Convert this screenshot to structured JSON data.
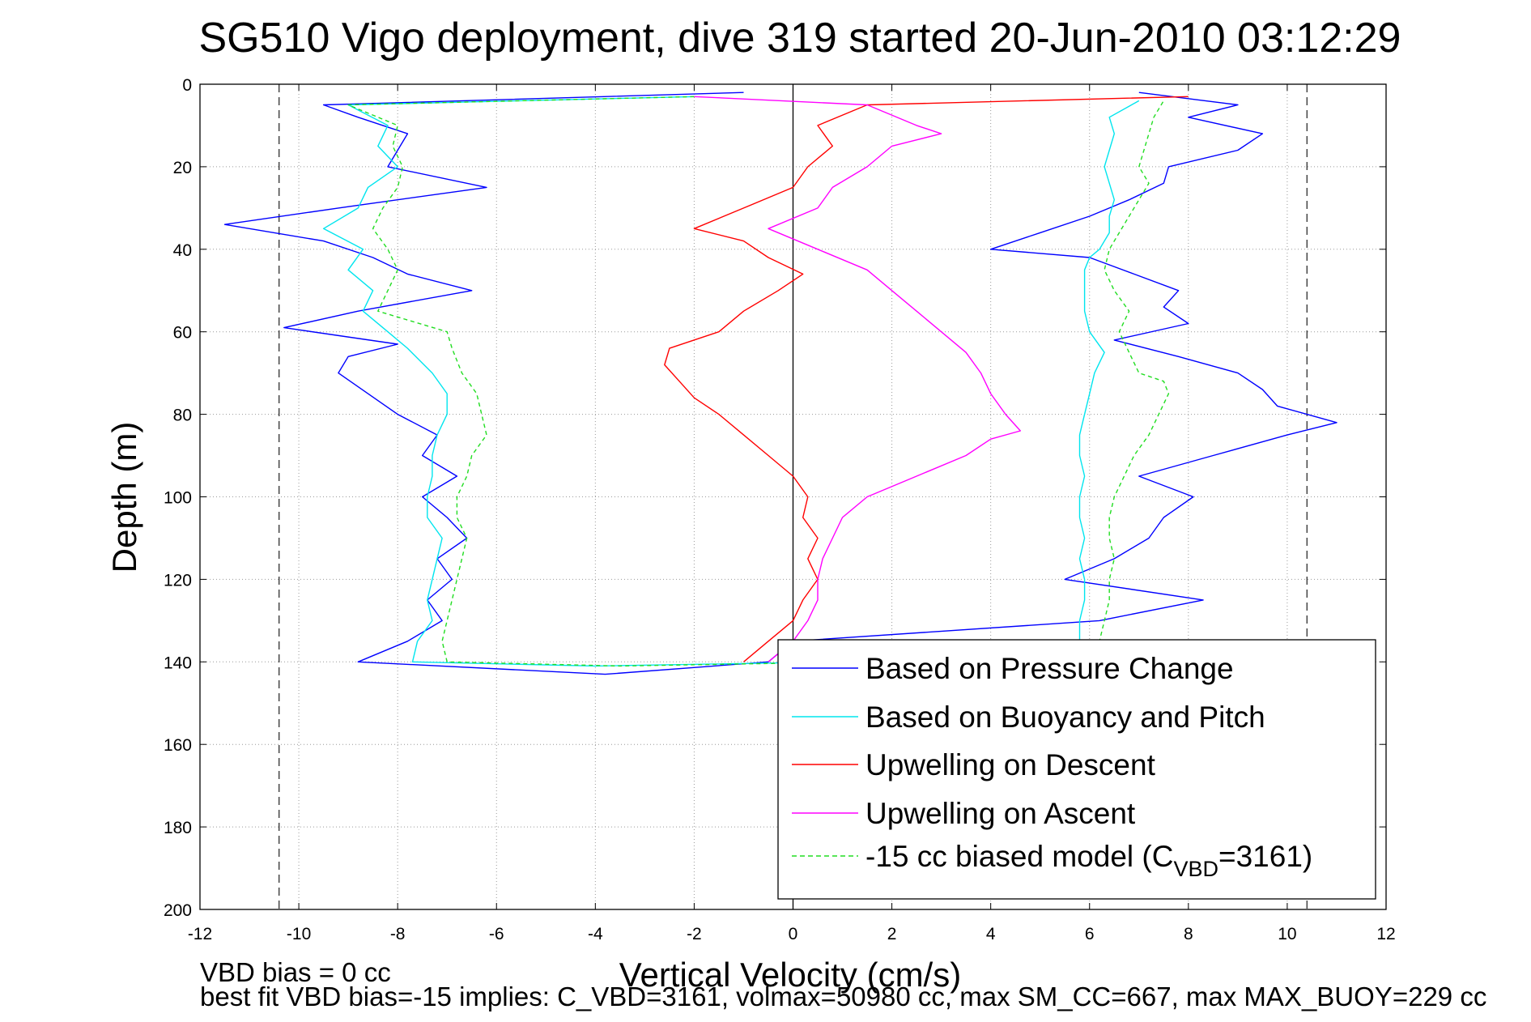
{
  "chart_data": {
    "type": "line",
    "title": "SG510 Vigo deployment, dive 319 started 20-Jun-2010 03:12:29",
    "xlabel": "Vertical Velocity (cm/s)",
    "ylabel": "Depth (m)",
    "xlim": [
      -12,
      12
    ],
    "ylim": [
      0,
      200
    ],
    "y_reversed": true,
    "grid": "dotted",
    "x_ticks": [
      "-12",
      "-10",
      "-8",
      "-6",
      "-4",
      "-2",
      "0",
      "2",
      "4",
      "6",
      "8",
      "10",
      "12"
    ],
    "y_ticks": [
      "0",
      "20",
      "40",
      "60",
      "80",
      "100",
      "120",
      "140",
      "160",
      "180",
      "200"
    ],
    "reference_lines": {
      "zero_line_x": 0,
      "dashed_limits_x": [
        -10.4,
        10.4
      ]
    },
    "legend_position": "bottom-right",
    "legend": [
      "Based on Pressure Change",
      "Based on Buoyancy and Pitch",
      "Upwelling on Descent",
      "Upwelling on Ascent"
    ],
    "legend_last": {
      "prefix": "-15 cc biased model (C",
      "sub": "VBD",
      "suffix": "=3161)"
    },
    "series": [
      {
        "name": "Based on Pressure Change",
        "color": "#0000ff",
        "style": "solid",
        "depth": [
          2,
          5,
          8,
          12,
          16,
          20,
          25,
          30,
          34,
          38,
          42,
          46,
          50,
          55,
          59,
          63,
          66,
          70,
          75,
          80,
          85,
          90,
          95,
          100,
          105,
          110,
          115,
          120,
          125,
          130,
          135,
          140,
          143,
          140,
          135,
          130,
          125,
          120,
          115,
          110,
          105,
          100,
          95,
          90,
          85,
          82,
          78,
          74,
          70,
          66,
          62,
          58,
          54,
          50,
          46,
          42,
          40,
          36,
          32,
          28,
          24,
          20,
          16,
          12,
          8,
          5,
          2
        ],
        "values": [
          -1.0,
          -9.5,
          -8.8,
          -7.8,
          -8.0,
          -8.2,
          -6.2,
          -9.2,
          -11.5,
          -9.5,
          -8.5,
          -7.8,
          -6.5,
          -8.8,
          -10.3,
          -8.0,
          -9.0,
          -9.2,
          -8.6,
          -8.0,
          -7.2,
          -7.5,
          -6.8,
          -7.5,
          -7.0,
          -6.6,
          -7.2,
          -6.9,
          -7.4,
          -7.1,
          -7.8,
          -8.8,
          -3.8,
          -0.5,
          0.0,
          6.2,
          8.3,
          5.5,
          6.5,
          7.2,
          7.5,
          8.1,
          7.0,
          8.5,
          10.0,
          11.0,
          9.8,
          9.5,
          9.0,
          7.8,
          6.5,
          8.0,
          7.5,
          7.8,
          6.9,
          6.0,
          4.0,
          5.0,
          6.0,
          6.8,
          7.5,
          7.6,
          9.0,
          9.5,
          8.0,
          9.0,
          7.0
        ]
      },
      {
        "name": "Based on Buoyancy and Pitch",
        "color": "#00e5ee",
        "style": "solid",
        "depth": [
          3,
          5,
          10,
          15,
          20,
          25,
          30,
          35,
          40,
          45,
          50,
          55,
          60,
          64,
          70,
          75,
          80,
          85,
          90,
          95,
          100,
          105,
          110,
          115,
          120,
          125,
          130,
          135,
          140,
          141,
          140,
          135,
          130,
          125,
          120,
          115,
          110,
          105,
          100,
          95,
          90,
          85,
          80,
          75,
          70,
          65,
          60,
          55,
          50,
          45,
          42,
          40,
          36,
          32,
          28,
          24,
          20,
          16,
          12,
          8,
          4
        ],
        "values": [
          -2.0,
          -9.0,
          -8.2,
          -8.4,
          -8.0,
          -8.6,
          -8.8,
          -9.5,
          -8.7,
          -9.0,
          -8.5,
          -8.7,
          -8.2,
          -7.8,
          -7.3,
          -7.0,
          -7.0,
          -7.2,
          -7.3,
          -7.3,
          -7.4,
          -7.4,
          -7.1,
          -7.2,
          -7.3,
          -7.4,
          -7.3,
          -7.6,
          -7.7,
          -4.0,
          1.0,
          5.8,
          5.8,
          5.9,
          5.9,
          5.8,
          5.9,
          5.8,
          5.8,
          5.9,
          5.8,
          5.8,
          5.9,
          6.0,
          6.1,
          6.3,
          6.0,
          5.9,
          5.9,
          5.9,
          6.0,
          6.2,
          6.4,
          6.4,
          6.5,
          6.4,
          6.3,
          6.4,
          6.5,
          6.4,
          7.0
        ]
      },
      {
        "name": "Upwelling on Descent",
        "color": "#ff0000",
        "style": "solid",
        "depth": [
          3,
          5,
          10,
          15,
          20,
          25,
          30,
          35,
          38,
          42,
          46,
          50,
          55,
          60,
          64,
          68,
          72,
          76,
          80,
          85,
          90,
          95,
          100,
          105,
          110,
          115,
          120,
          125,
          130,
          135,
          140
        ],
        "values": [
          8.0,
          1.5,
          0.5,
          0.8,
          0.3,
          0.0,
          -1.0,
          -2.0,
          -1.0,
          -0.5,
          0.2,
          -0.3,
          -1.0,
          -1.5,
          -2.5,
          -2.6,
          -2.3,
          -2.0,
          -1.5,
          -1.0,
          -0.5,
          0.0,
          0.3,
          0.2,
          0.5,
          0.3,
          0.5,
          0.2,
          0.0,
          -0.5,
          -1.0
        ]
      },
      {
        "name": "Upwelling on Ascent",
        "color": "#ff00ff",
        "style": "solid",
        "depth": [
          3,
          5,
          10,
          12,
          15,
          20,
          25,
          30,
          35,
          40,
          45,
          50,
          55,
          60,
          65,
          70,
          75,
          80,
          84,
          86,
          90,
          95,
          100,
          105,
          110,
          115,
          120,
          125,
          130,
          135,
          140
        ],
        "values": [
          -2.0,
          1.5,
          2.5,
          3.0,
          2.0,
          1.5,
          0.8,
          0.5,
          -0.5,
          0.5,
          1.5,
          2.0,
          2.5,
          3.0,
          3.5,
          3.8,
          4.0,
          4.3,
          4.6,
          4.0,
          3.5,
          2.5,
          1.5,
          1.0,
          0.8,
          0.6,
          0.5,
          0.5,
          0.3,
          0.0,
          -0.5
        ]
      },
      {
        "name": "-15 cc biased model (C_VBD=3161)",
        "color": "#22dd22",
        "style": "dashed",
        "depth": [
          3,
          5,
          10,
          15,
          20,
          25,
          30,
          35,
          40,
          45,
          50,
          55,
          60,
          64,
          70,
          75,
          80,
          85,
          90,
          95,
          100,
          105,
          110,
          115,
          120,
          125,
          130,
          135,
          140,
          141,
          140,
          135,
          130,
          125,
          120,
          115,
          110,
          105,
          100,
          95,
          90,
          85,
          80,
          75,
          72,
          70,
          65,
          60,
          55,
          50,
          45,
          40,
          36,
          32,
          28,
          24,
          20,
          16,
          12,
          8,
          4
        ],
        "values": [
          -2.0,
          -9.0,
          -8.0,
          -8.1,
          -7.9,
          -8.0,
          -8.3,
          -8.5,
          -8.2,
          -8.0,
          -8.2,
          -8.4,
          -7.0,
          -6.9,
          -6.7,
          -6.4,
          -6.3,
          -6.2,
          -6.5,
          -6.6,
          -6.8,
          -6.8,
          -6.6,
          -6.7,
          -6.8,
          -6.9,
          -7.0,
          -7.1,
          -7.0,
          -3.5,
          1.5,
          6.2,
          6.3,
          6.4,
          6.4,
          6.5,
          6.4,
          6.4,
          6.5,
          6.7,
          6.9,
          7.2,
          7.4,
          7.6,
          7.5,
          7.0,
          6.8,
          6.6,
          6.8,
          6.5,
          6.3,
          6.4,
          6.6,
          6.8,
          7.0,
          7.2,
          7.0,
          7.1,
          7.2,
          7.3,
          7.5
        ]
      }
    ]
  },
  "footer": {
    "line1": "VBD bias = 0 cc",
    "line2": "best fit VBD bias=-15 implies: C_VBD=3161, volmax=50980 cc, max SM_CC=667, max MAX_BUOY=229 cc"
  }
}
